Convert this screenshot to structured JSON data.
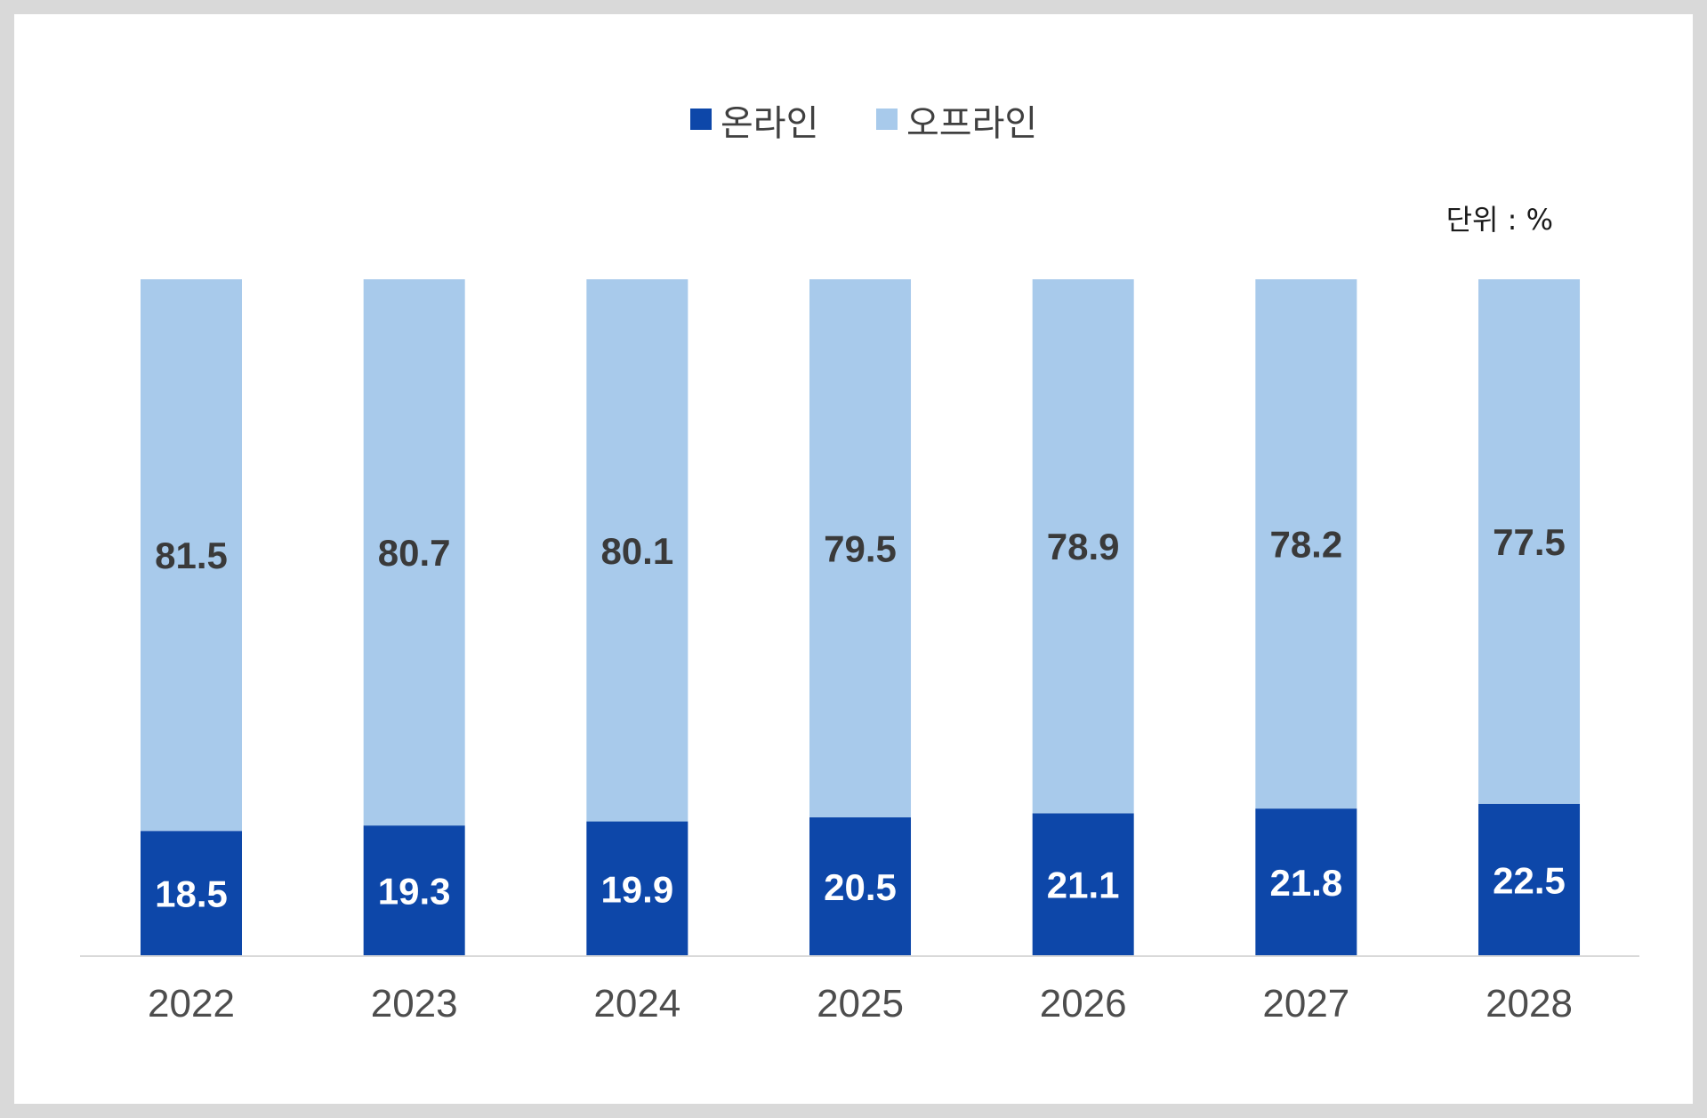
{
  "chart_data": {
    "type": "bar",
    "stacked": true,
    "title": "",
    "xlabel": "",
    "ylabel": "",
    "unit_note": "단위 : %",
    "categories": [
      "2022",
      "2023",
      "2024",
      "2025",
      "2026",
      "2027",
      "2028"
    ],
    "series": [
      {
        "name": "온라인",
        "color": "#0d47a9",
        "values": [
          18.5,
          19.3,
          19.9,
          20.5,
          21.1,
          21.8,
          22.5
        ],
        "labels": [
          "18.5",
          "19.3",
          "19.9",
          "20.5",
          "21.1",
          "21.8",
          "22.5"
        ]
      },
      {
        "name": "오프라인",
        "color": "#a8caeb",
        "values": [
          81.5,
          80.7,
          80.1,
          79.5,
          78.9,
          78.2,
          77.5
        ],
        "labels": [
          "81.5",
          "80.7",
          "80.1",
          "79.5",
          "78.9",
          "78.2",
          "77.5"
        ]
      }
    ],
    "ylim": [
      0,
      100
    ],
    "grid": false,
    "legend_position": "top-center"
  }
}
